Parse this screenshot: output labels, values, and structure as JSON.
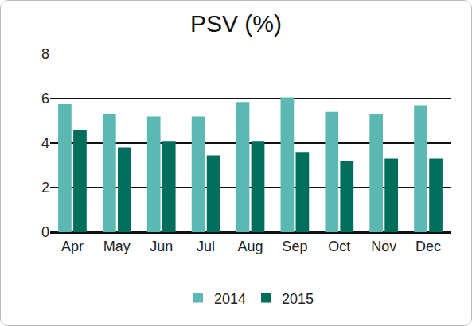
{
  "chart_data": {
    "type": "bar",
    "title": "PSV (%)",
    "categories": [
      "Apr",
      "May",
      "Jun",
      "Jul",
      "Aug",
      "Sep",
      "Oct",
      "Nov",
      "Dec"
    ],
    "series": [
      {
        "name": "2014",
        "color": "#5cb8b2",
        "values": [
          5.75,
          5.3,
          5.2,
          5.2,
          5.85,
          6.05,
          5.4,
          5.3,
          5.7
        ]
      },
      {
        "name": "2015",
        "color": "#006e5b",
        "values": [
          4.6,
          3.8,
          4.1,
          3.45,
          4.1,
          3.6,
          3.2,
          3.3,
          3.3
        ]
      }
    ],
    "ylim": [
      0,
      8
    ],
    "yticks": [
      0,
      2,
      4,
      6,
      8
    ],
    "grid": true,
    "legend": "bottom"
  }
}
